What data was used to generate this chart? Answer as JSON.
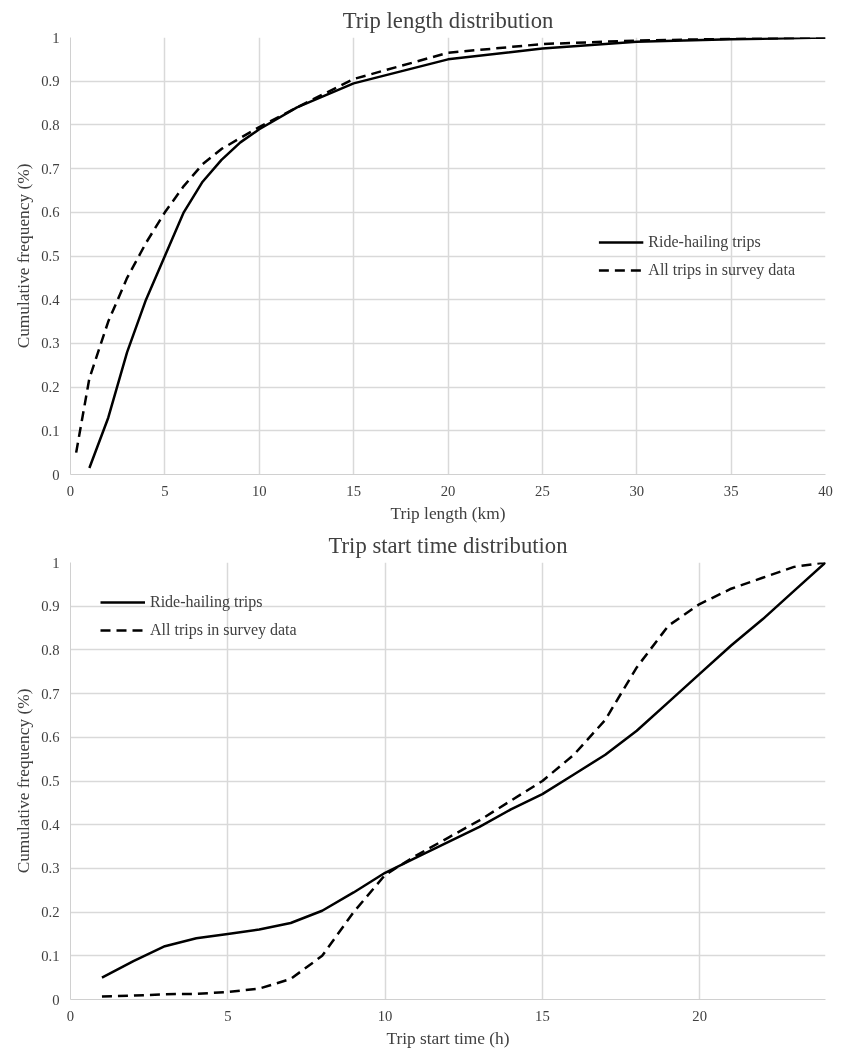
{
  "chart_data": [
    {
      "type": "line",
      "title": "Trip length distribution",
      "xlabel": "Trip length (km)",
      "ylabel": "Cumulative frequency (%)",
      "xlim": [
        0,
        40
      ],
      "xticks": [
        0,
        5,
        10,
        15,
        20,
        25,
        30,
        35,
        40
      ],
      "ylim": [
        0,
        1
      ],
      "yticks": [
        0,
        0.1,
        0.2,
        0.3,
        0.4,
        0.5,
        0.6,
        0.7,
        0.8,
        0.9,
        1
      ],
      "grid": true,
      "legend": "right",
      "marker": "none",
      "series": [
        {
          "name": "Ride-hailing trips",
          "color": "#000000",
          "line_style": "solid",
          "x": [
            1,
            2,
            3,
            4,
            5,
            6,
            7,
            8,
            9,
            10,
            12,
            15,
            20,
            25,
            30,
            35,
            40
          ],
          "values": [
            0.015,
            0.13,
            0.28,
            0.4,
            0.5,
            0.6,
            0.67,
            0.72,
            0.76,
            0.79,
            0.84,
            0.895,
            0.95,
            0.975,
            0.99,
            0.996,
            1
          ]
        },
        {
          "name": "All trips in survey data",
          "color": "#000000",
          "line_style": "dashed",
          "x": [
            0.3,
            1,
            2,
            3,
            4,
            5,
            6,
            7,
            8,
            10,
            12,
            15,
            20,
            25,
            30,
            35,
            40
          ],
          "values": [
            0.05,
            0.22,
            0.35,
            0.45,
            0.53,
            0.6,
            0.66,
            0.71,
            0.745,
            0.795,
            0.84,
            0.905,
            0.965,
            0.985,
            0.993,
            0.997,
            1
          ]
        }
      ]
    },
    {
      "type": "line",
      "title": "Trip start time distribution",
      "xlabel": "Trip start time (h)",
      "ylabel": "Cumulative frequency (%)",
      "xlim": [
        0,
        24
      ],
      "xticks": [
        0,
        5,
        10,
        15,
        20
      ],
      "ylim": [
        0,
        1
      ],
      "yticks": [
        0,
        0.1,
        0.2,
        0.3,
        0.4,
        0.5,
        0.6,
        0.7,
        0.8,
        0.9,
        1
      ],
      "grid": true,
      "legend": "top left",
      "marker": "none",
      "series": [
        {
          "name": "Ride-hailing trips",
          "color": "#000000",
          "line_style": "solid",
          "x": [
            1,
            2,
            3,
            4,
            5,
            6,
            7,
            8,
            9,
            10,
            11,
            12,
            13,
            14,
            15,
            16,
            17,
            18,
            19,
            20,
            21,
            22,
            23,
            24
          ],
          "values": [
            0.05,
            0.088,
            0.122,
            0.14,
            0.15,
            0.16,
            0.175,
            0.203,
            0.245,
            0.29,
            0.325,
            0.36,
            0.395,
            0.435,
            0.47,
            0.515,
            0.56,
            0.615,
            0.68,
            0.745,
            0.81,
            0.87,
            0.935,
            1
          ]
        },
        {
          "name": "All trips in survey data",
          "color": "#000000",
          "line_style": "dashed",
          "x": [
            1,
            2,
            3,
            4,
            5,
            6,
            7,
            8,
            9,
            10,
            11,
            12,
            13,
            14,
            15,
            16,
            17,
            18,
            19,
            20,
            21,
            22,
            23,
            24
          ],
          "values": [
            0.007,
            0.009,
            0.012,
            0.013,
            0.017,
            0.025,
            0.047,
            0.1,
            0.2,
            0.285,
            0.33,
            0.37,
            0.41,
            0.455,
            0.5,
            0.56,
            0.64,
            0.76,
            0.855,
            0.905,
            0.94,
            0.965,
            0.99,
            1
          ]
        }
      ]
    }
  ]
}
